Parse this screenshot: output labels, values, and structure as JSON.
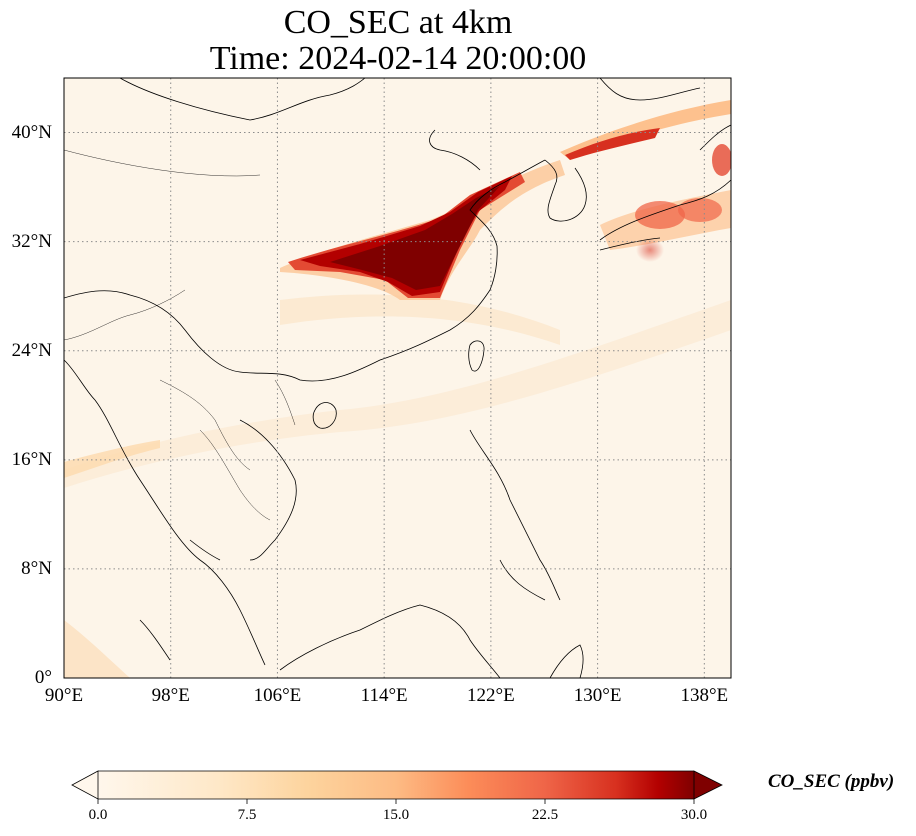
{
  "title": {
    "line1": "CO_SEC at 4km",
    "line2": "Time: 2024-02-14 20:00:00"
  },
  "map": {
    "projection": "PlateCarree",
    "lon_range": [
      90,
      140
    ],
    "lat_range": [
      0,
      44
    ],
    "lat_ticks": [
      {
        "value": 0,
        "label": "0°"
      },
      {
        "value": 8,
        "label": "8°N"
      },
      {
        "value": 16,
        "label": "16°N"
      },
      {
        "value": 24,
        "label": "24°N"
      },
      {
        "value": 32,
        "label": "32°N"
      },
      {
        "value": 40,
        "label": "40°N"
      }
    ],
    "lon_ticks": [
      {
        "value": 90,
        "label": "90°E"
      },
      {
        "value": 98,
        "label": "98°E"
      },
      {
        "value": 106,
        "label": "106°E"
      },
      {
        "value": 114,
        "label": "114°E"
      },
      {
        "value": 122,
        "label": "122°E"
      },
      {
        "value": 130,
        "label": "130°E"
      },
      {
        "value": 138,
        "label": "138°E"
      }
    ],
    "gridlines": "dotted",
    "colormap": "OrRd",
    "colors": {
      "background": "#fdf5e9",
      "low": "#fee8c8",
      "mid": "#fc8d59",
      "high": "#7f0000",
      "coastline": "#000000",
      "grid": "#8c8c8c"
    }
  },
  "colorbar": {
    "label": "CO_SEC (ppbv)",
    "vmin": 0.0,
    "vmax": 30.0,
    "extend": "both",
    "ticks": [
      {
        "value": 0.0,
        "label": "0.0"
      },
      {
        "value": 7.5,
        "label": "7.5"
      },
      {
        "value": 15.0,
        "label": "15.0"
      },
      {
        "value": 22.5,
        "label": "22.5"
      },
      {
        "value": 30.0,
        "label": "30.0"
      }
    ]
  },
  "plumes": [
    {
      "name": "central-china-plume",
      "lon": [
        107,
        121
      ],
      "lat": [
        28,
        37
      ],
      "max_ppbv": 30
    },
    {
      "name": "korea-japan-plume",
      "lon": [
        125,
        139
      ],
      "lat": [
        32,
        42
      ],
      "max_ppbv": 20
    },
    {
      "name": "indochina-band",
      "lon": [
        90,
        98
      ],
      "lat": [
        15,
        17
      ],
      "max_ppbv": 5
    }
  ]
}
